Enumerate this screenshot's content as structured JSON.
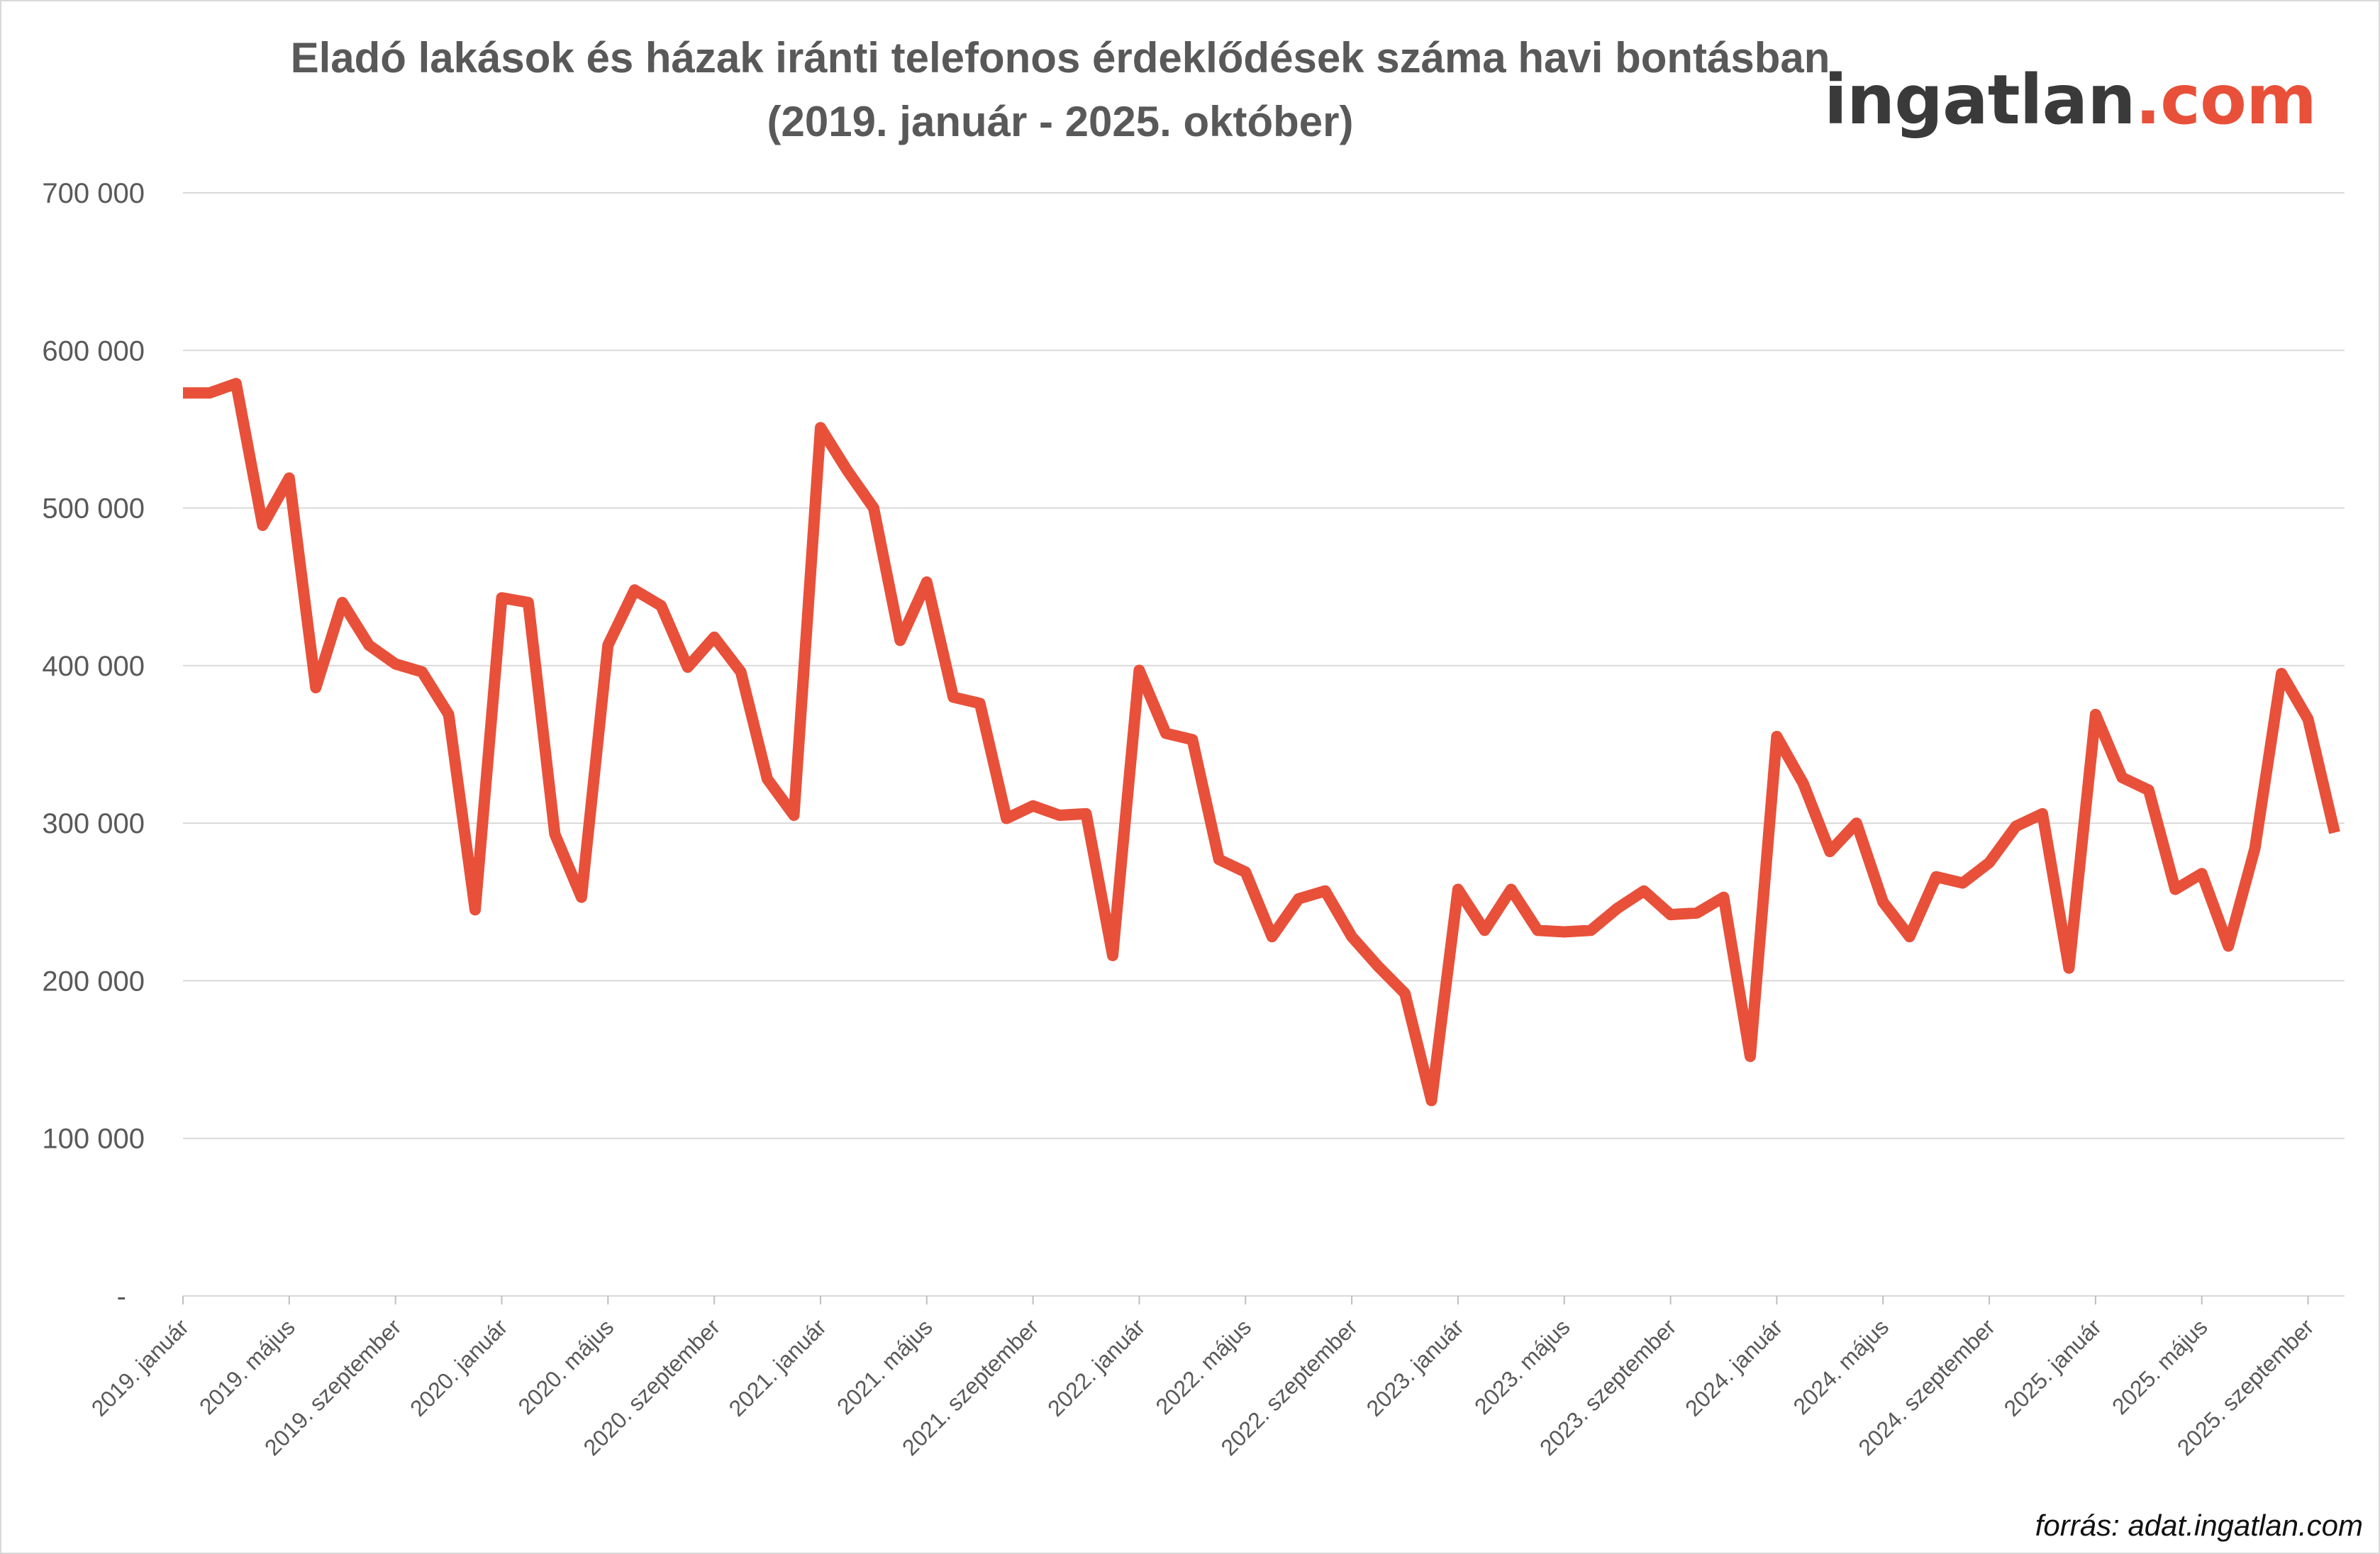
{
  "chart_data": {
    "type": "line",
    "title": "Eladó lakások és házak iránti telefonos érdeklődések száma havi bontásban",
    "subtitle": "(2019. január - 2025. október)",
    "xlabel": "",
    "ylabel": "",
    "ylim": [
      0,
      700000
    ],
    "yticks": [
      0,
      100000,
      200000,
      300000,
      400000,
      500000,
      600000,
      700000
    ],
    "ytick_labels": [
      "-",
      "100 000",
      "200 000",
      "300 000",
      "400 000",
      "500 000",
      "600 000",
      "700 000"
    ],
    "grid": true,
    "legend": "none",
    "color": "#e8503a",
    "x": [
      "2019. január",
      "2019. február",
      "2019. március",
      "2019. április",
      "2019. május",
      "2019. június",
      "2019. július",
      "2019. augusztus",
      "2019. szeptember",
      "2019. október",
      "2019. november",
      "2019. december",
      "2020. január",
      "2020. február",
      "2020. március",
      "2020. április",
      "2020. május",
      "2020. június",
      "2020. július",
      "2020. augusztus",
      "2020. szeptember",
      "2020. október",
      "2020. november",
      "2020. december",
      "2021. január",
      "2021. február",
      "2021. március",
      "2021. április",
      "2021. május",
      "2021. június",
      "2021. július",
      "2021. augusztus",
      "2021. szeptember",
      "2021. október",
      "2021. november",
      "2021. december",
      "2022. január",
      "2022. február",
      "2022. március",
      "2022. április",
      "2022. május",
      "2022. június",
      "2022. július",
      "2022. augusztus",
      "2022. szeptember",
      "2022. október",
      "2022. november",
      "2022. december",
      "2023. január",
      "2023. február",
      "2023. március",
      "2023. április",
      "2023. május",
      "2023. június",
      "2023. július",
      "2023. augusztus",
      "2023. szeptember",
      "2023. október",
      "2023. november",
      "2023. december",
      "2024. január",
      "2024. február",
      "2024. március",
      "2024. április",
      "2024. május",
      "2024. június",
      "2024. július",
      "2024. augusztus",
      "2024. szeptember",
      "2024. október",
      "2024. november",
      "2024. december",
      "2025. január",
      "2025. február",
      "2025. március",
      "2025. április",
      "2025. május",
      "2025. június",
      "2025. július",
      "2025. augusztus",
      "2025. szeptember",
      "2025. október"
    ],
    "x_tick_labels": [
      "2019. január",
      "2019. május",
      "2019. szeptember",
      "2020. január",
      "2020. május",
      "2020. szeptember",
      "2021. január",
      "2021. május",
      "2021. szeptember",
      "2022. január",
      "2022. május",
      "2022. szeptember",
      "2023. január",
      "2023. május",
      "2023. szeptember",
      "2024. január",
      "2024. május",
      "2024. szeptember",
      "2025. január",
      "2025. május",
      "2025. szeptember"
    ],
    "series": [
      {
        "values": [
          573000,
          573000,
          579000,
          489000,
          519000,
          386000,
          440000,
          413000,
          401000,
          396000,
          369000,
          245000,
          443000,
          440000,
          293000,
          253000,
          413000,
          448000,
          438000,
          399000,
          418000,
          396000,
          328000,
          305000,
          551000,
          524000,
          500000,
          416000,
          453000,
          380000,
          376000,
          303000,
          311000,
          305000,
          306000,
          216000,
          397000,
          357000,
          353000,
          277000,
          269000,
          228000,
          252000,
          257000,
          228000,
          209000,
          192000,
          124000,
          258000,
          232000,
          258000,
          232000,
          231000,
          232000,
          246000,
          257000,
          242000,
          243000,
          253000,
          152000,
          355000,
          325000,
          282000,
          300000,
          250000,
          228000,
          266000,
          262000,
          275000,
          298000,
          306000,
          208000,
          369000,
          329000,
          321000,
          258000,
          268000,
          222000,
          284000,
          395000,
          366000,
          294000
        ]
      }
    ]
  },
  "logo": {
    "text_main": "ingatlan",
    "text_accent": ".com"
  },
  "source": "forrás: adat.ingatlan.com"
}
